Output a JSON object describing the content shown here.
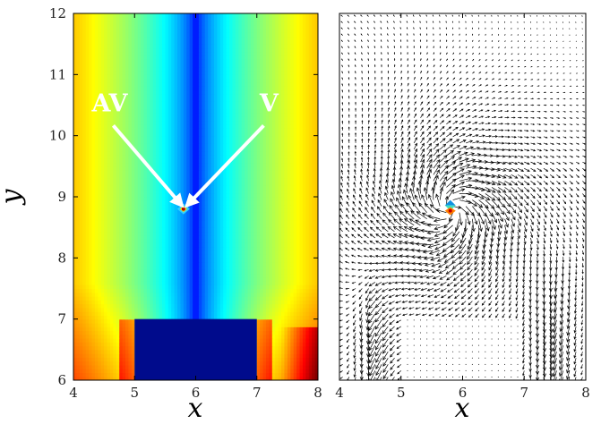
{
  "chart_data": [
    {
      "type": "heatmap",
      "title": "",
      "xlabel": "x",
      "ylabel": "y",
      "xlim": [
        4,
        8
      ],
      "ylim": [
        6,
        12
      ],
      "xticks": [
        "4",
        "5",
        "6",
        "7",
        "8"
      ],
      "yticks": [
        "6",
        "7",
        "8",
        "9",
        "10",
        "11",
        "12"
      ],
      "colormap": "jet",
      "obstacle": {
        "x": [
          5,
          7
        ],
        "y": [
          6,
          7
        ],
        "color": "#000b8c"
      },
      "vortex_center": {
        "x": 5.8,
        "y": 8.8
      },
      "annotations": [
        {
          "text": "AV",
          "label_at": [
            4.3,
            10.4
          ],
          "arrow_to": [
            5.78,
            8.85
          ]
        },
        {
          "text": "V",
          "label_at": [
            7.2,
            10.4
          ],
          "arrow_to": [
            5.85,
            8.85
          ]
        }
      ],
      "grid": false,
      "legend": "none"
    },
    {
      "type": "quiver",
      "title": "",
      "xlabel": "x",
      "ylabel": "",
      "xlim": [
        4,
        8
      ],
      "ylim": [
        6,
        12
      ],
      "xticks": [
        "4",
        "5",
        "6",
        "7",
        "8"
      ],
      "vortex_center": {
        "x": 5.8,
        "y": 8.8
      },
      "obstacle": {
        "x": [
          5,
          7
        ],
        "y": [
          6,
          7
        ]
      },
      "grid": false,
      "legend": "none"
    }
  ]
}
